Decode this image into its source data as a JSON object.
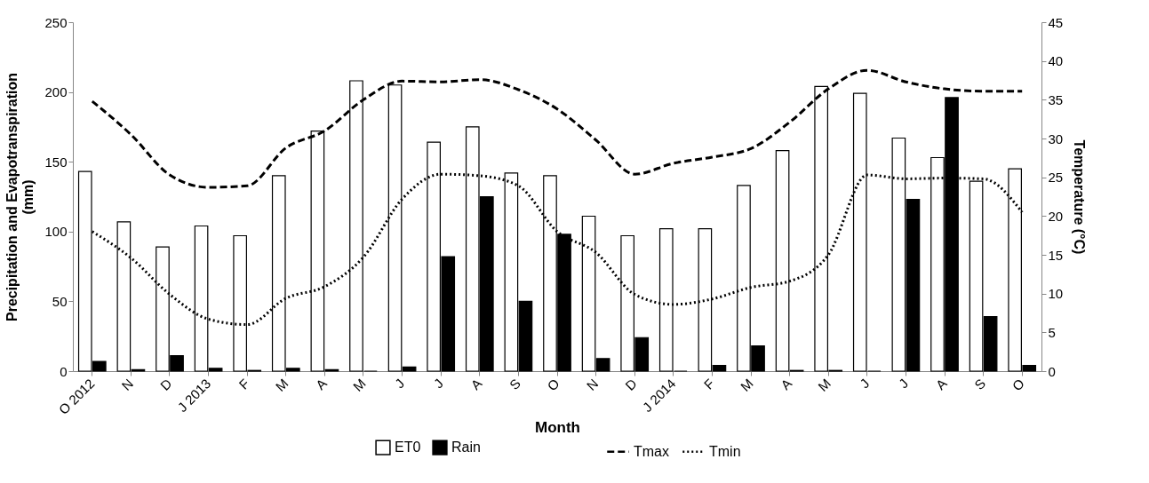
{
  "chart_data": {
    "type": "bar",
    "xlabel": "Month",
    "ylabel": "Precipitation and Evapotranspiration (mm)",
    "y2label": "Temperature (°C)",
    "categories": [
      "O 2012",
      "N",
      "D",
      "J 2013",
      "F",
      "M",
      "A",
      "M",
      "J",
      "J",
      "A",
      "S",
      "O",
      "N",
      "D",
      "J 2014",
      "F",
      "M",
      "A",
      "M",
      "J",
      "J",
      "A",
      "S",
      "O"
    ],
    "series": [
      {
        "name": "ET0",
        "type": "bar",
        "color": "#ffffff",
        "values": [
          143,
          107,
          89,
          104,
          97,
          140,
          172,
          208,
          205,
          164,
          175,
          142,
          140,
          111,
          97,
          102,
          102,
          133,
          158,
          204,
          199,
          167,
          153,
          136,
          145
        ]
      },
      {
        "name": "Rain",
        "type": "bar",
        "color": "#000000",
        "values": [
          7,
          1,
          11,
          2,
          0.5,
          2,
          1,
          0,
          3,
          82,
          125,
          50,
          98,
          9,
          24,
          0,
          4,
          18,
          0.5,
          0.5,
          0,
          123,
          196,
          39,
          4
        ]
      },
      {
        "name": "Tmax",
        "type": "line",
        "axis": "y2",
        "color": "#000000",
        "line_style": "dashed",
        "values": [
          34.8,
          30.5,
          25.3,
          23.7,
          23.9,
          28.8,
          31.0,
          35.0,
          37.4,
          37.3,
          37.6,
          36.3,
          33.8,
          29.8,
          25.4,
          26.8,
          27.6,
          28.7,
          32.1,
          36.4,
          38.8,
          37.3,
          36.4,
          36.1,
          36.1
        ]
      },
      {
        "name": "Tmin",
        "type": "line",
        "axis": "y2",
        "color": "#000000",
        "line_style": "dotted",
        "values": [
          18.0,
          14.6,
          9.9,
          6.7,
          6.0,
          9.4,
          10.9,
          14.7,
          22.2,
          25.4,
          25.2,
          23.9,
          18.0,
          15.3,
          9.9,
          8.6,
          9.3,
          10.8,
          11.6,
          15.0,
          25.3,
          24.8,
          24.9,
          24.8,
          20.5
        ]
      }
    ],
    "ylim": [
      0,
      250
    ],
    "yticks": [
      0,
      50,
      100,
      150,
      200,
      250
    ],
    "y2lim": [
      0,
      45
    ],
    "y2ticks": [
      0,
      5,
      10,
      15,
      20,
      25,
      30,
      35,
      40,
      45
    ],
    "grid": false,
    "legend": "bottom",
    "marker": "none"
  }
}
